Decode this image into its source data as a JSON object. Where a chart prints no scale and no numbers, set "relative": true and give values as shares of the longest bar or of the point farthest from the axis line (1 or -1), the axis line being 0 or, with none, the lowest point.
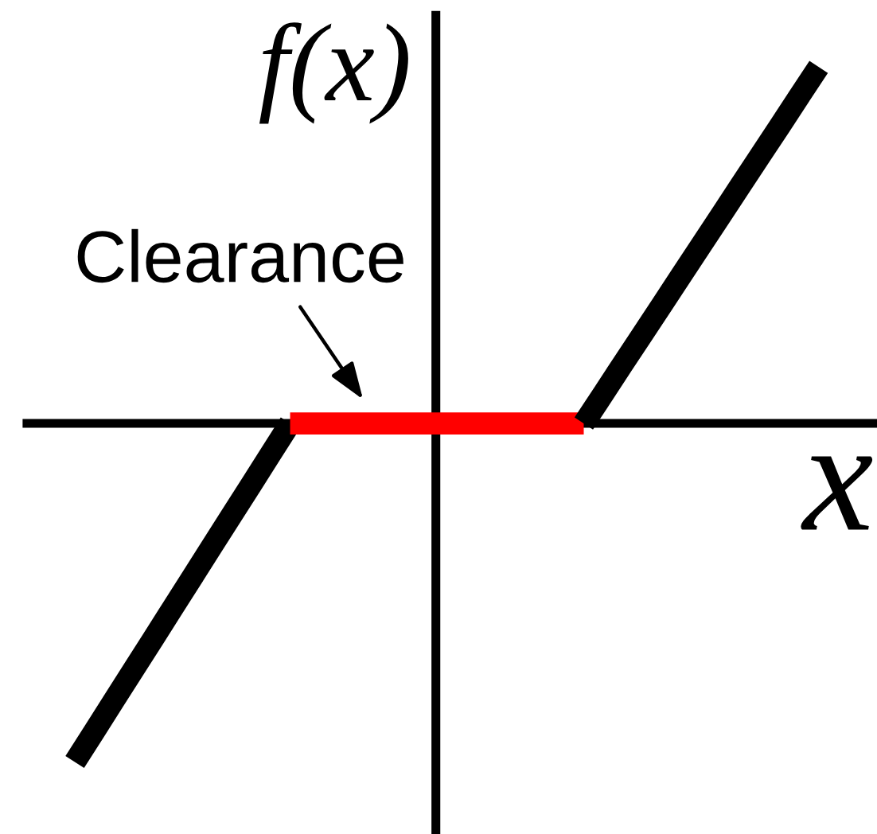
{
  "chart_data": {
    "type": "line",
    "relative": true,
    "xlabel": "x",
    "ylabel": "f(x)",
    "line_style": "solid",
    "annotations": [
      "Clearance"
    ],
    "categories": [
      null,
      null,
      null,
      null,
      null,
      null,
      null,
      null,
      null,
      null,
      null,
      null,
      null,
      null,
      null,
      null,
      null,
      null,
      null,
      null,
      null,
      null,
      null,
      null,
      null,
      null,
      null,
      null,
      null,
      null,
      null,
      null,
      null,
      null,
      null,
      null,
      null,
      null,
      null
    ],
    "series": [
      {
        "color": "#000000",
        "values": [
          -0.95,
          -0.864,
          -0.777,
          -0.691,
          -0.605,
          -0.518,
          -0.432,
          -0.345,
          -0.259,
          -0.173,
          -0.086,
          0,
          null,
          null,
          null,
          null,
          null,
          null,
          null,
          null,
          null,
          null,
          null,
          null,
          null,
          null,
          null,
          null,
          null,
          null,
          null,
          null,
          null,
          null,
          null,
          null,
          null,
          null,
          null
        ]
      },
      {
        "color": "#ff0000",
        "values": [
          null,
          null,
          null,
          null,
          null,
          null,
          null,
          null,
          null,
          null,
          null,
          0,
          0,
          0,
          0,
          0,
          0,
          0,
          0,
          0,
          0,
          0,
          0,
          0,
          0,
          0,
          0,
          null,
          null,
          null,
          null,
          null,
          null,
          null,
          null,
          null,
          null,
          null,
          null
        ]
      },
      {
        "color": "#000000",
        "values": [
          null,
          null,
          null,
          null,
          null,
          null,
          null,
          null,
          null,
          null,
          null,
          null,
          null,
          null,
          null,
          null,
          null,
          null,
          null,
          null,
          null,
          null,
          null,
          null,
          null,
          null,
          0,
          0.083,
          0.167,
          0.25,
          0.333,
          0.417,
          0.5,
          0.583,
          0.667,
          0.75,
          0.833,
          0.917,
          1
        ]
      }
    ]
  }
}
